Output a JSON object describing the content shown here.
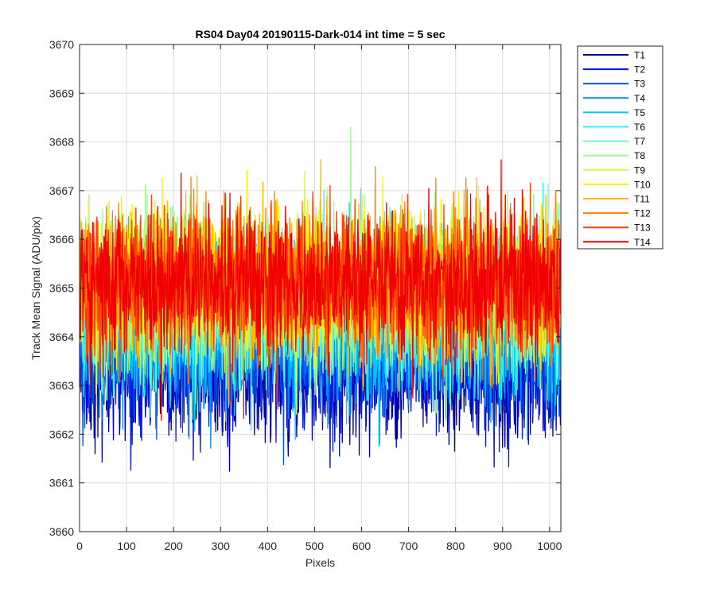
{
  "chart_data": {
    "type": "line",
    "title": "RS04 Day04 20190115-Dark-014 int time = 5 sec",
    "xlabel": "Pixels",
    "ylabel": "Track Mean Signal (ADU/pix)",
    "xlim": [
      0,
      1024
    ],
    "ylim": [
      3660,
      3670
    ],
    "xticks": [
      0,
      100,
      200,
      300,
      400,
      500,
      600,
      700,
      800,
      900,
      1000
    ],
    "yticks": [
      3660,
      3661,
      3662,
      3663,
      3664,
      3665,
      3666,
      3667,
      3668,
      3669,
      3670
    ],
    "grid": true,
    "legend_position": "outside top-right",
    "series": [
      {
        "name": "T1",
        "color": "#0000AA",
        "mean": 3663.3,
        "spread": 0.75
      },
      {
        "name": "T2",
        "color": "#0018D8",
        "mean": 3663.6,
        "spread": 0.75
      },
      {
        "name": "T3",
        "color": "#0050F0",
        "mean": 3663.9,
        "spread": 0.75
      },
      {
        "name": "T4",
        "color": "#0090F8",
        "mean": 3664.1,
        "spread": 0.75
      },
      {
        "name": "T5",
        "color": "#00C8FF",
        "mean": 3664.3,
        "spread": 0.75
      },
      {
        "name": "T6",
        "color": "#30F0F0",
        "mean": 3664.5,
        "spread": 0.75
      },
      {
        "name": "T7",
        "color": "#70F8C8",
        "mean": 3664.7,
        "spread": 0.75
      },
      {
        "name": "T8",
        "color": "#A0F890",
        "mean": 3664.9,
        "spread": 0.75
      },
      {
        "name": "T9",
        "color": "#D0F850",
        "mean": 3665.0,
        "spread": 0.75
      },
      {
        "name": "T10",
        "color": "#FFF000",
        "mean": 3665.1,
        "spread": 0.75
      },
      {
        "name": "T11",
        "color": "#FFB800",
        "mean": 3665.1,
        "spread": 0.75
      },
      {
        "name": "T12",
        "color": "#FF8000",
        "mean": 3665.1,
        "spread": 0.75
      },
      {
        "name": "T13",
        "color": "#FF4000",
        "mean": 3665.1,
        "spread": 0.75
      },
      {
        "name": "T14",
        "color": "#F00000",
        "mean": 3665.1,
        "spread": 0.75
      }
    ]
  }
}
